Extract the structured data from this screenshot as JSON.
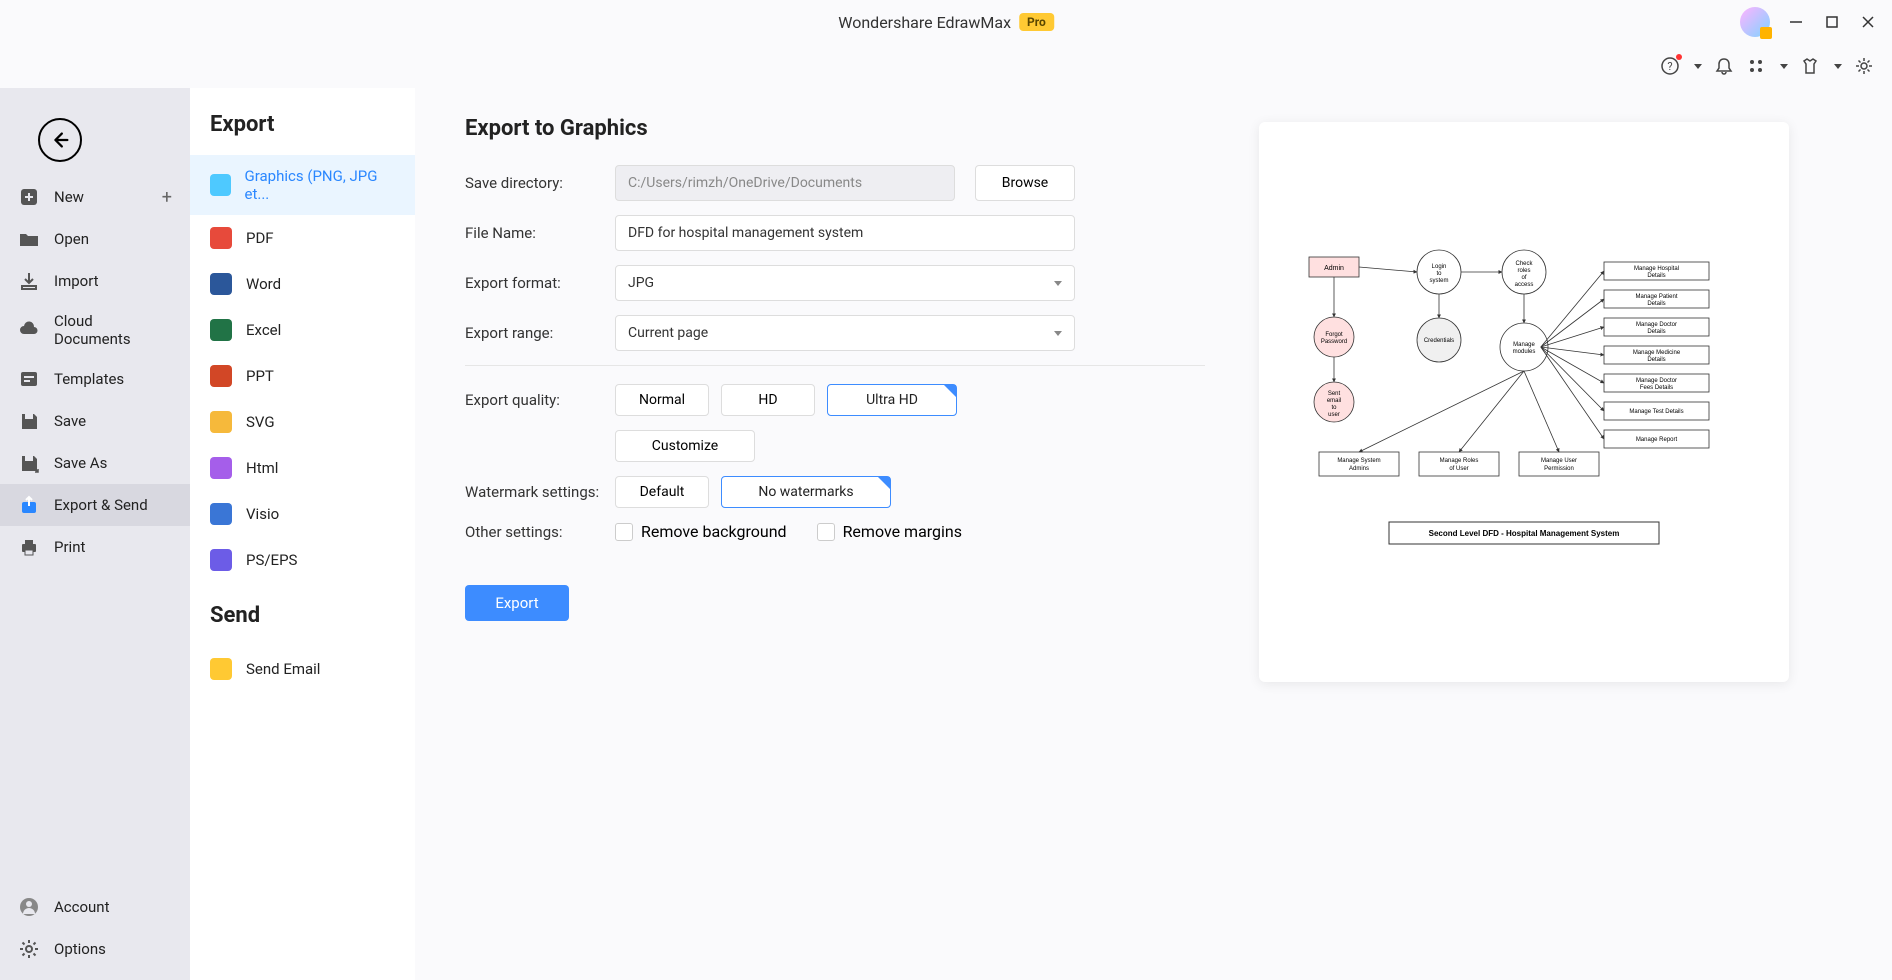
{
  "titlebar": {
    "app_name": "Wondershare EdrawMax",
    "badge": "Pro"
  },
  "left_sidebar": {
    "items": [
      {
        "label": "New",
        "plus": true
      },
      {
        "label": "Open"
      },
      {
        "label": "Import"
      },
      {
        "label": "Cloud Documents"
      },
      {
        "label": "Templates"
      },
      {
        "label": "Save"
      },
      {
        "label": "Save As"
      },
      {
        "label": "Export & Send",
        "active": true
      },
      {
        "label": "Print"
      }
    ],
    "bottom": [
      {
        "label": "Account"
      },
      {
        "label": "Options"
      }
    ]
  },
  "export_types": {
    "heading": "Export",
    "items": [
      {
        "label": "Graphics (PNG, JPG et...",
        "color": "#4ec9ff",
        "active": true
      },
      {
        "label": "PDF",
        "color": "#e74a3b"
      },
      {
        "label": "Word",
        "color": "#2b579a"
      },
      {
        "label": "Excel",
        "color": "#217346"
      },
      {
        "label": "PPT",
        "color": "#d24726"
      },
      {
        "label": "SVG",
        "color": "#f6b93b"
      },
      {
        "label": "Html",
        "color": "#a55eea"
      },
      {
        "label": "Visio",
        "color": "#3a76d6"
      },
      {
        "label": "PS/EPS",
        "color": "#6c5ce7"
      }
    ],
    "send_heading": "Send",
    "send_items": [
      {
        "label": "Send Email",
        "color": "#ffc933"
      }
    ]
  },
  "form": {
    "heading": "Export to Graphics",
    "save_dir_label": "Save directory:",
    "save_dir_value": "C:/Users/rimzh/OneDrive/Documents",
    "browse_label": "Browse",
    "file_name_label": "File Name:",
    "file_name_value": "DFD for hospital management system",
    "format_label": "Export format:",
    "format_value": "JPG",
    "range_label": "Export range:",
    "range_value": "Current page",
    "quality_label": "Export quality:",
    "quality_options": [
      "Normal",
      "HD",
      "Ultra HD"
    ],
    "quality_selected": "Ultra HD",
    "customize_label": "Customize",
    "watermark_label": "Watermark settings:",
    "watermark_options": [
      "Default",
      "No watermarks"
    ],
    "watermark_selected": "No watermarks",
    "other_label": "Other settings:",
    "remove_bg_label": "Remove background",
    "remove_margins_label": "Remove margins",
    "export_button": "Export"
  },
  "preview": {
    "title": "Second Level DFD - Hospital Management System",
    "nodes": {
      "admin": {
        "label": "Admin",
        "fill": "#ffe0e0"
      },
      "login": {
        "label": "Login to system"
      },
      "check_roles": {
        "label": "Check roles of access"
      },
      "forgot": {
        "label": "Forgot Password",
        "fill": "#ffe0e0"
      },
      "credentials": {
        "label": "Credentials",
        "fill": "#f0f0f0"
      },
      "sent_email": {
        "label": "Sent email to user",
        "fill": "#ffe0e0"
      },
      "manage_modules": {
        "label": "Manage modules"
      }
    },
    "right_boxes": [
      "Manage Hospital Details",
      "Manage Patient Details",
      "Manage Doctor Details",
      "Manage Medicine Details",
      "Manage Doctor Fees Details",
      "Manage Test Details",
      "Manage Report"
    ],
    "bottom_boxes": [
      "Manage System Admins",
      "Manage Roles of User",
      "Manage User Permission"
    ],
    "colors": {
      "stroke": "#333333",
      "title_border": "#333333"
    }
  }
}
